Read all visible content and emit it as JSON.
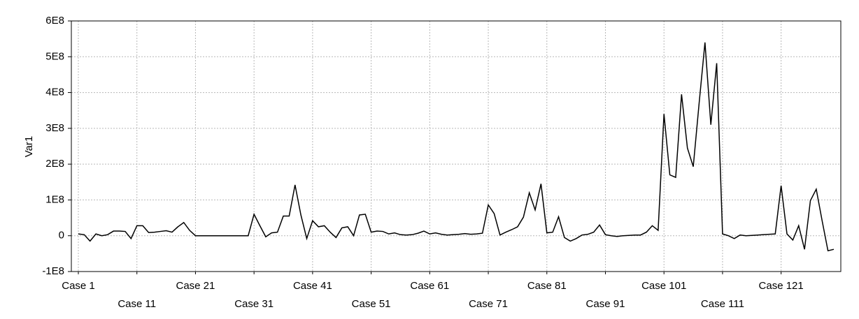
{
  "chart_data": {
    "type": "line",
    "y_label": "Var1",
    "categories": [
      "Case 1",
      null,
      null,
      null,
      null,
      null,
      null,
      null,
      null,
      null,
      "Case 11",
      null,
      null,
      null,
      null,
      null,
      null,
      null,
      null,
      null,
      "Case 21",
      null,
      null,
      null,
      null,
      null,
      null,
      null,
      null,
      null,
      "Case 31",
      null,
      null,
      null,
      null,
      null,
      null,
      null,
      null,
      null,
      "Case 41",
      null,
      null,
      null,
      null,
      null,
      null,
      null,
      null,
      null,
      "Case 51",
      null,
      null,
      null,
      null,
      null,
      null,
      null,
      null,
      null,
      "Case 61",
      null,
      null,
      null,
      null,
      null,
      null,
      null,
      null,
      null,
      "Case 71",
      null,
      null,
      null,
      null,
      null,
      null,
      null,
      null,
      null,
      "Case 81",
      null,
      null,
      null,
      null,
      null,
      null,
      null,
      null,
      null,
      "Case 91",
      null,
      null,
      null,
      null,
      null,
      null,
      null,
      null,
      null,
      "Case 101",
      null,
      null,
      null,
      null,
      null,
      null,
      null,
      null,
      null,
      "Case 111",
      null,
      null,
      null,
      null,
      null,
      null,
      null,
      null,
      null,
      "Case 121",
      null,
      null,
      null,
      null,
      null,
      null,
      null,
      null,
      null
    ],
    "series": [
      {
        "name": "Var1",
        "color": "#000000",
        "values": [
          5000000.0,
          3000000.0,
          -15000000.0,
          5000000.0,
          0.0,
          3000000.0,
          13000000.0,
          13000000.0,
          12000000.0,
          -8000000.0,
          28000000.0,
          28000000.0,
          9000000.0,
          10000000.0,
          12000000.0,
          14000000.0,
          10000000.0,
          25000000.0,
          37000000.0,
          15000000.0,
          0.0,
          0.0,
          0.0,
          0.0,
          0.0,
          0.0,
          0.0,
          0.0,
          0.0,
          0.0,
          60000000.0,
          28000000.0,
          -3000000.0,
          8000000.0,
          10000000.0,
          55000000.0,
          55000000.0,
          142000000.0,
          58000000.0,
          -8000000.0,
          42000000.0,
          25000000.0,
          28000000.0,
          10000000.0,
          -5000000.0,
          22000000.0,
          25000000.0,
          0.0,
          58000000.0,
          60000000.0,
          10000000.0,
          13000000.0,
          12000000.0,
          5000000.0,
          8000000.0,
          3000000.0,
          2000000.0,
          3000000.0,
          7000000.0,
          13000000.0,
          5000000.0,
          8000000.0,
          4000000.0,
          2000000.0,
          3000000.0,
          4000000.0,
          6000000.0,
          4000000.0,
          5000000.0,
          7000000.0,
          86000000.0,
          62000000.0,
          2000000.0,
          10000000.0,
          17000000.0,
          25000000.0,
          52000000.0,
          120000000.0,
          72000000.0,
          145000000.0,
          8000000.0,
          10000000.0,
          53000000.0,
          -5000000.0,
          -15000000.0,
          -8000000.0,
          2000000.0,
          4000000.0,
          10000000.0,
          30000000.0,
          3000000.0,
          0.0,
          -2000000.0,
          0.0,
          1000000.0,
          2000000.0,
          2000000.0,
          10000000.0,
          28000000.0,
          15000000.0,
          340000000.0,
          170000000.0,
          163000000.0,
          395000000.0,
          245000000.0,
          193000000.0,
          370000000.0,
          540000000.0,
          310000000.0,
          482000000.0,
          5000000.0,
          0.0,
          -8000000.0,
          2000000.0,
          0.0,
          1000000.0,
          2000000.0,
          3000000.0,
          4000000.0,
          5000000.0,
          140000000.0,
          5000000.0,
          -12000000.0,
          28000000.0,
          -38000000.0,
          98000000.0,
          130000000.0,
          42000000.0,
          -42000000.0,
          -38000000.0
        ]
      }
    ],
    "ylim": [
      -100000000.0,
      600000000.0
    ],
    "yticks": [
      {
        "value": -100000000.0,
        "label": "-1E8"
      },
      {
        "value": 0,
        "label": "0"
      },
      {
        "value": 100000000.0,
        "label": "1E8"
      },
      {
        "value": 200000000.0,
        "label": "2E8"
      },
      {
        "value": 300000000.0,
        "label": "3E8"
      },
      {
        "value": 400000000.0,
        "label": "4E8"
      },
      {
        "value": 500000000.0,
        "label": "5E8"
      },
      {
        "value": 600000000.0,
        "label": "6E8"
      }
    ],
    "grid": true
  }
}
